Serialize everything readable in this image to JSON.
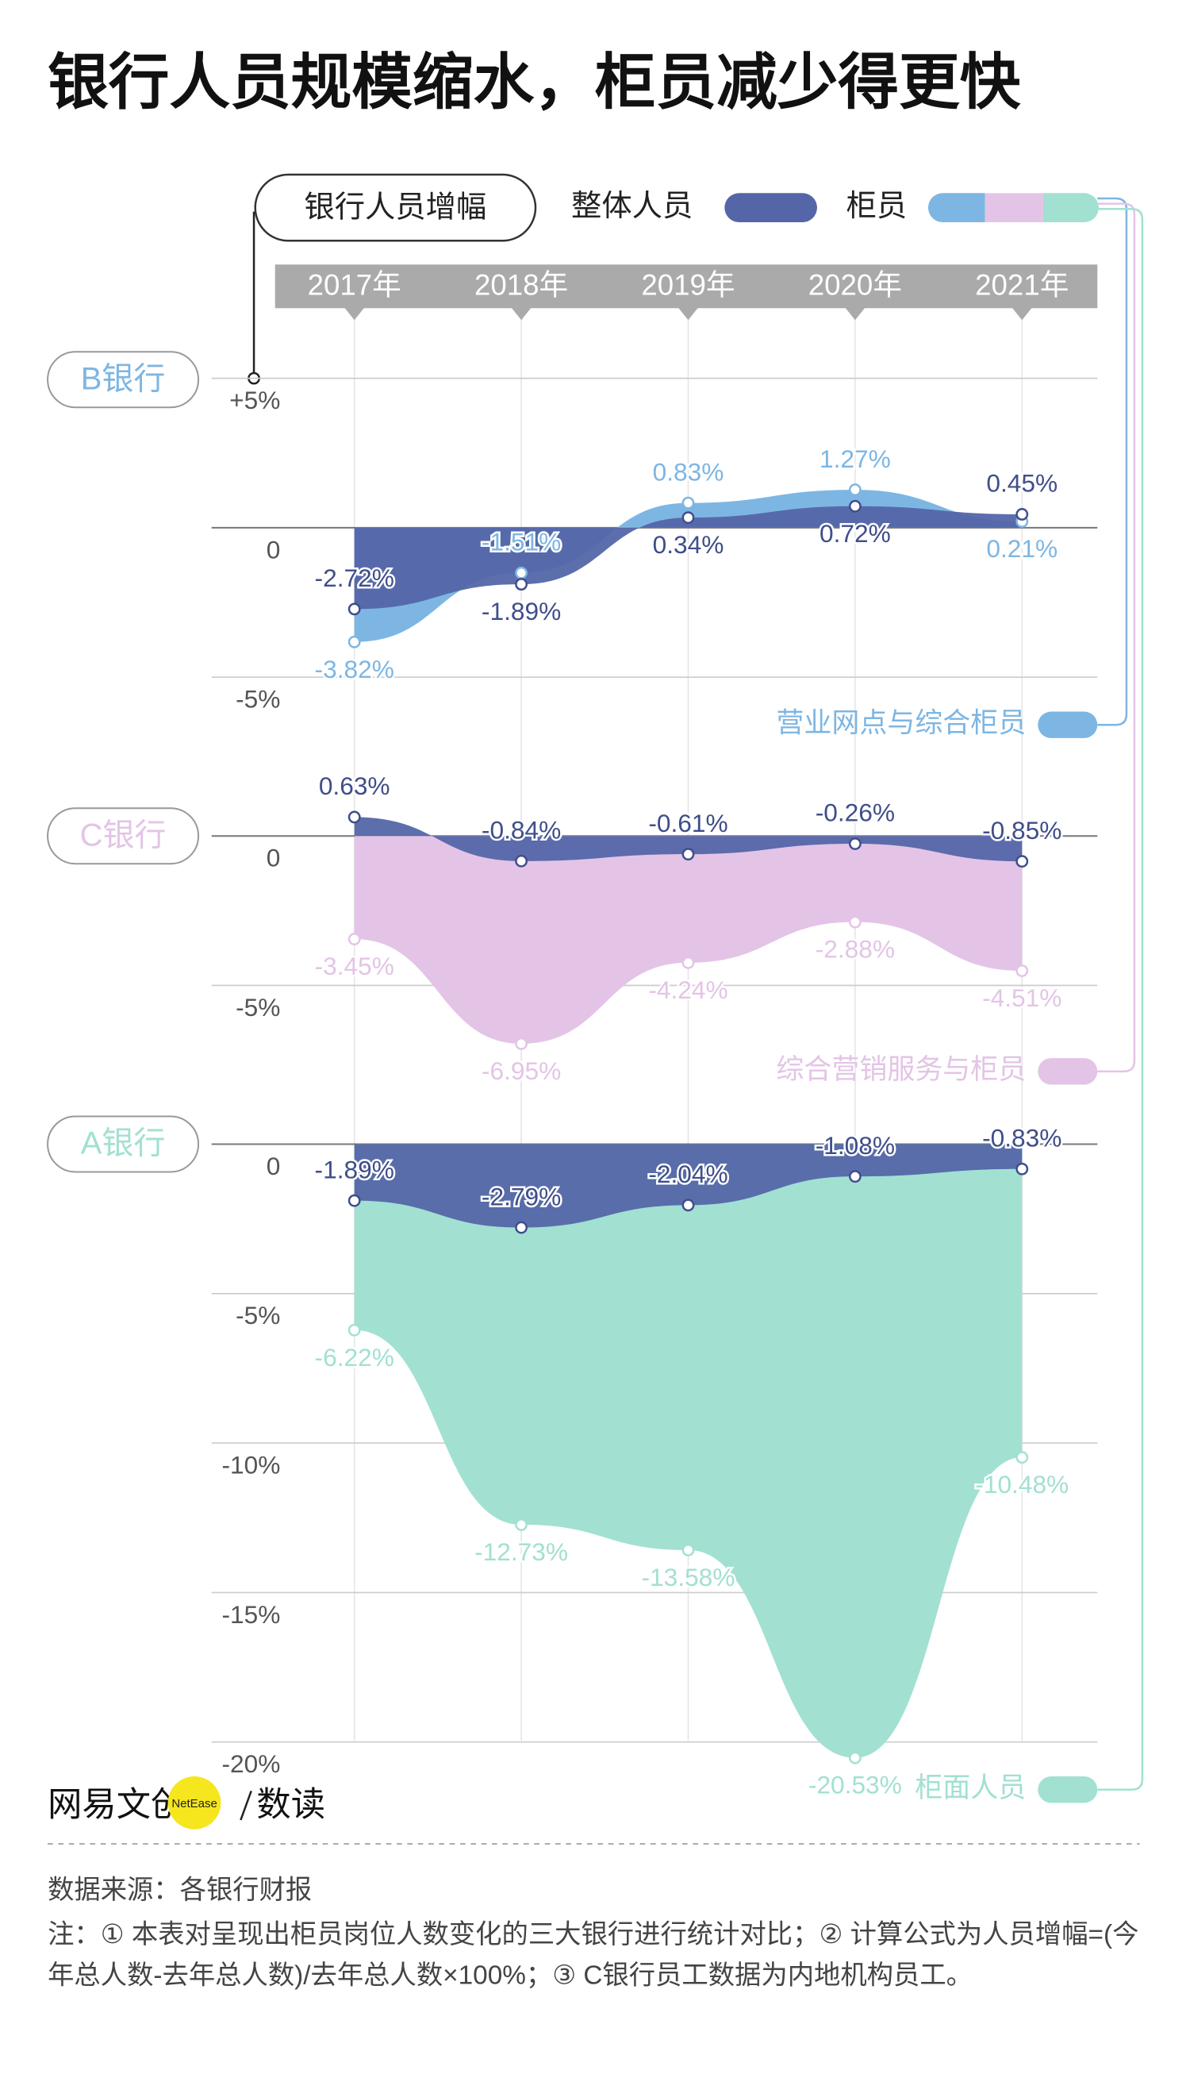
{
  "title": "银行人员规模缩水，柜员减少得更快",
  "legend": {
    "title": "银行人员增幅",
    "teller": "柜员"
  },
  "chart_data": [
    {
      "type": "area",
      "title": "B银行",
      "categories": [
        "2017年",
        "2018年",
        "2019年",
        "2020年",
        "2021年"
      ],
      "ylim": [
        -5,
        5
      ],
      "yticks": [
        {
          "value": 5,
          "label": "+5%"
        },
        0,
        {
          "value": -5,
          "label": "-5%"
        }
      ],
      "series": [
        {
          "name": "营业网点与综合柜员",
          "color": "#7db6e3",
          "values": [
            -3.82,
            -1.51,
            0.83,
            1.27,
            0.21
          ],
          "value_labels": [
            "-3.82%",
            "-1.51%",
            "0.83%",
            "1.27%",
            "0.21%"
          ]
        },
        {
          "name": "整体人员",
          "color": "#5466a8",
          "values": [
            -2.72,
            -1.89,
            0.34,
            0.72,
            0.45
          ],
          "value_labels": [
            "-2.72%",
            "-1.89%",
            "0.34%",
            "0.72%",
            "0.45%"
          ]
        }
      ]
    },
    {
      "type": "area",
      "title": "C银行",
      "ylim": [
        -7.5,
        2.5
      ],
      "yticks": [
        0,
        {
          "value": -5,
          "label": "-5%"
        }
      ],
      "series": [
        {
          "name": "综合营销服务与柜员",
          "color": "#e3c4e6",
          "values": [
            -3.45,
            -6.95,
            -4.24,
            -2.88,
            -4.51
          ],
          "value_labels": [
            "-3.45%",
            "-6.95%",
            "-4.24%",
            "-2.88%",
            "-4.51%"
          ]
        },
        {
          "name": "整体人员",
          "color": "#5466a8",
          "values": [
            0.63,
            -0.84,
            -0.61,
            -0.26,
            -0.85
          ],
          "value_labels": [
            "0.63%",
            "-0.84%",
            "-0.61%",
            "-0.26%",
            "-0.85%"
          ]
        }
      ]
    },
    {
      "type": "area",
      "title": "A银行",
      "ylim": [
        -21.5,
        1
      ],
      "yticks": [
        0,
        {
          "value": -5,
          "label": "-5%"
        },
        {
          "value": -10,
          "label": "-10%"
        },
        {
          "value": -15,
          "label": "-15%"
        },
        {
          "value": -20,
          "label": "-20%"
        }
      ],
      "series": [
        {
          "name": "柜面人员",
          "color": "#a2e0d2",
          "values": [
            -6.22,
            -12.73,
            -13.58,
            -20.53,
            -10.48
          ],
          "value_labels": [
            "-6.22%",
            "-12.73%",
            "-13.58%",
            "-20.53%",
            "-10.48%"
          ]
        },
        {
          "name": "整体人员",
          "color": "#5466a8",
          "values": [
            -1.89,
            -2.79,
            -2.04,
            -1.08,
            -0.83
          ],
          "value_labels": [
            "-1.89%",
            "-2.79%",
            "-2.04%",
            "-1.08%",
            "-0.83%"
          ]
        }
      ]
    }
  ],
  "footer": {
    "brand": "网易文创",
    "brand_en": "NetEase",
    "brand_sub": "数读",
    "source": "数据来源：各银行财报",
    "note": "注：① 本表对呈现出柜员岗位人数变化的三大银行进行统计对比；② 计算公式为人员增幅=(今年总人数-去年总人数)/去年总人数×100%；③ C银行员工数据为内地机构员工。"
  }
}
